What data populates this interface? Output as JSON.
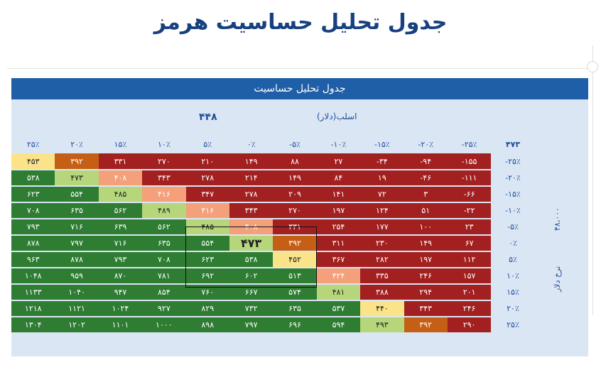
{
  "page_title": "جدول تحلیل حساسیت هرمز",
  "banner": "جدول تحلیل حساسیت",
  "top_value": "۴۴۸",
  "top_axis_label": "اسلب(دلار)",
  "corner_value": "۴۷۳",
  "side_value": "۴۸،۰۰۰",
  "side_label": "نرخ دلار",
  "columns": [
    "۲۵٪",
    "۲۰٪",
    "۱۵٪",
    "۱۰٪",
    "۵٪",
    "۰٪",
    "-۵٪",
    "-۱۰٪",
    "-۱۵٪",
    "-۲۰٪",
    "-۲۵٪"
  ],
  "rows": [
    {
      "label": "-۲۵٪",
      "cells": [
        "۴۵۳",
        "۳۹۲",
        "۳۳۱",
        "۲۷۰",
        "۲۱۰",
        "۱۴۹",
        "۸۸",
        "۲۷",
        "-۳۴",
        "-۹۴",
        "-۱۵۵"
      ]
    },
    {
      "label": "-۲۰٪",
      "cells": [
        "۵۳۸",
        "۴۷۳",
        "۴۰۸",
        "۳۴۳",
        "۲۷۸",
        "۲۱۴",
        "۱۴۹",
        "۸۴",
        "۱۹",
        "-۴۶",
        "-۱۱۱"
      ]
    },
    {
      "label": "-۱۵٪",
      "cells": [
        "۶۲۳",
        "۵۵۴",
        "۴۸۵",
        "۴۱۶",
        "۳۴۷",
        "۲۷۸",
        "۲۰۹",
        "۱۴۱",
        "۷۲",
        "۳",
        "-۶۶"
      ]
    },
    {
      "label": "-۱۰٪",
      "cells": [
        "۷۰۸",
        "۶۳۵",
        "۵۶۲",
        "۴۸۹",
        "۴۱۶",
        "۳۴۳",
        "۲۷۰",
        "۱۹۷",
        "۱۲۴",
        "۵۱",
        "-۲۲"
      ]
    },
    {
      "label": "-۵٪",
      "cells": [
        "۷۹۳",
        "۷۱۶",
        "۶۳۹",
        "۵۶۲",
        "۴۸۵",
        "۴۰۸",
        "۳۳۱",
        "۲۵۴",
        "۱۷۷",
        "۱۰۰",
        "۲۳"
      ]
    },
    {
      "label": "۰٪",
      "cells": [
        "۸۷۸",
        "۷۹۷",
        "۷۱۶",
        "۶۳۵",
        "۵۵۴",
        "۴۷۳",
        "۳۹۲",
        "۳۱۱",
        "۲۳۰",
        "۱۴۹",
        "۶۷"
      ]
    },
    {
      "label": "۵٪",
      "cells": [
        "۹۶۳",
        "۸۷۸",
        "۷۹۳",
        "۷۰۸",
        "۶۲۳",
        "۵۳۸",
        "۴۵۲",
        "۳۶۷",
        "۲۸۲",
        "۱۹۷",
        "۱۱۲"
      ]
    },
    {
      "label": "۱۰٪",
      "cells": [
        "۱۰۴۸",
        "۹۵۹",
        "۸۷۰",
        "۷۸۱",
        "۶۹۲",
        "۶۰۲",
        "۵۱۳",
        "۴۲۴",
        "۳۳۵",
        "۲۴۶",
        "۱۵۷"
      ]
    },
    {
      "label": "۱۵٪",
      "cells": [
        "۱۱۳۳",
        "۱۰۴۰",
        "۹۴۷",
        "۸۵۴",
        "۷۶۰",
        "۶۶۷",
        "۵۷۴",
        "۴۸۱",
        "۳۸۸",
        "۲۹۴",
        "۲۰۱"
      ]
    },
    {
      "label": "۲۰٪",
      "cells": [
        "۱۲۱۸",
        "۱۱۲۱",
        "۱۰۲۴",
        "۹۲۷",
        "۸۲۹",
        "۷۳۲",
        "۶۳۵",
        "۵۳۷",
        "۴۴۰",
        "۳۴۳",
        "۲۴۶"
      ]
    },
    {
      "label": "۲۵٪",
      "cells": [
        "۱۳۰۴",
        "۱۲۰۲",
        "۱۱۰۱",
        "۱۰۰۰",
        "۸۹۸",
        "۷۹۷",
        "۶۹۶",
        "۵۹۴",
        "۴۹۳",
        "۳۹۲",
        "۲۹۰"
      ]
    }
  ],
  "colors": {
    "g": "#2e7d32",
    "r": "#a32020",
    "lg": "#b5d67a",
    "y": "#fbe38a",
    "o": "#f4a07a",
    "dko": "#c65f16",
    "header": "#1f5fa8",
    "card": "#dbe6f5",
    "title": "#17407f"
  },
  "cell_colors": [
    [
      "y",
      "dko",
      "r",
      "r",
      "r",
      "r",
      "r",
      "r",
      "r",
      "r",
      "r"
    ],
    [
      "g",
      "lg",
      "o",
      "r",
      "r",
      "r",
      "r",
      "r",
      "r",
      "r",
      "r"
    ],
    [
      "g",
      "g",
      "lg",
      "o",
      "r",
      "r",
      "r",
      "r",
      "r",
      "r",
      "r"
    ],
    [
      "g",
      "g",
      "g",
      "lg",
      "o",
      "r",
      "r",
      "r",
      "r",
      "r",
      "r"
    ],
    [
      "g",
      "g",
      "g",
      "g",
      "lg",
      "o",
      "r",
      "r",
      "r",
      "r",
      "r"
    ],
    [
      "g",
      "g",
      "g",
      "g",
      "g",
      "lg",
      "dko",
      "r",
      "r",
      "r",
      "r"
    ],
    [
      "g",
      "g",
      "g",
      "g",
      "g",
      "g",
      "y",
      "r",
      "r",
      "r",
      "r"
    ],
    [
      "g",
      "g",
      "g",
      "g",
      "g",
      "g",
      "g",
      "o",
      "r",
      "r",
      "r"
    ],
    [
      "g",
      "g",
      "g",
      "g",
      "g",
      "g",
      "g",
      "lg",
      "r",
      "r",
      "r"
    ],
    [
      "g",
      "g",
      "g",
      "g",
      "g",
      "g",
      "g",
      "g",
      "y",
      "r",
      "r"
    ],
    [
      "g",
      "g",
      "g",
      "g",
      "g",
      "g",
      "g",
      "g",
      "lg",
      "dko",
      "r"
    ]
  ]
}
